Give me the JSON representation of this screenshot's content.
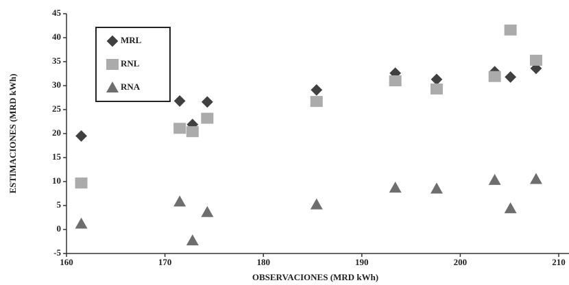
{
  "chart_data": {
    "type": "scatter",
    "xlabel": "OBSERVACIONES (MRD kWh)",
    "ylabel": "ESTIMACIONES (MRD kWh)",
    "xlim": [
      160,
      210
    ],
    "xticks": [
      160,
      170,
      180,
      190,
      200,
      210
    ],
    "ylim": [
      -5,
      45
    ],
    "yticks": [
      -5,
      0,
      5,
      10,
      15,
      20,
      25,
      30,
      35,
      40,
      45
    ],
    "legend": "upper-left",
    "series": [
      {
        "name": "MRL",
        "color": "#404040",
        "marker": "diamond",
        "x": [
          161.5,
          171.5,
          172.8,
          174.3,
          185.4,
          193.4,
          197.6,
          203.5,
          205.1,
          207.7
        ],
        "values": [
          19.5,
          26.8,
          21.9,
          26.6,
          29.1,
          32.6,
          31.3,
          32.9,
          31.8,
          33.6
        ]
      },
      {
        "name": "RNL",
        "color": "#ababab",
        "marker": "square",
        "x": [
          161.5,
          171.5,
          172.8,
          174.3,
          185.4,
          193.4,
          197.6,
          203.5,
          205.1,
          207.7
        ],
        "values": [
          9.7,
          21.1,
          20.4,
          23.2,
          26.7,
          31.0,
          29.3,
          31.9,
          41.6,
          35.3
        ]
      },
      {
        "name": "RNA",
        "color": "#6e6e6e",
        "marker": "triangle",
        "x": [
          161.5,
          171.5,
          172.8,
          174.3,
          185.4,
          193.4,
          197.6,
          203.5,
          205.1,
          207.7
        ],
        "values": [
          1.2,
          5.8,
          -2.3,
          3.6,
          5.2,
          8.7,
          8.5,
          10.3,
          4.4,
          10.5
        ]
      }
    ]
  }
}
